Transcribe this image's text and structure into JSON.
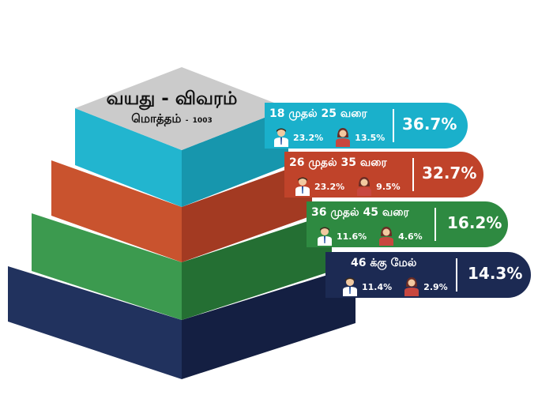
{
  "title": "வயது - விவரம்",
  "total_label": "மொத்தம்",
  "total_sep": "-",
  "total_value": "1003",
  "colors": {
    "tier1": "#1ab0cb",
    "tier2": "#c0432a",
    "tier3": "#2e8a41",
    "tier4": "#1c2a53",
    "top_face": "#c9c9c9"
  },
  "icons": {
    "male": "male-person-icon",
    "female": "female-person-icon"
  },
  "chart_data": {
    "type": "pyramid",
    "title": "வயது - விவரம்",
    "subtitle": "மொத்தம் - 1003",
    "categories": [
      "18 முதல் 25 வரை",
      "26 முதல் 35 வரை",
      "36 முதல் 45 வரை",
      "46 க்கு மேல்"
    ],
    "series": [
      {
        "name": "total",
        "values": [
          36.7,
          32.7,
          16.2,
          14.3
        ]
      },
      {
        "name": "male",
        "values": [
          23.2,
          23.2,
          11.6,
          11.4
        ]
      },
      {
        "name": "female",
        "values": [
          13.5,
          9.5,
          4.6,
          2.9
        ]
      }
    ],
    "tiers": [
      {
        "range": "18 முதல் 25 வரை",
        "male": "23.2%",
        "female": "13.5%",
        "total": "36.7%"
      },
      {
        "range": "26 முதல் 35 வரை",
        "male": "23.2%",
        "female": "9.5%",
        "total": "32.7%"
      },
      {
        "range": "36 முதல் 45 வரை",
        "male": "11.6%",
        "female": "4.6%",
        "total": "16.2%"
      },
      {
        "range": "46 க்கு மேல்",
        "male": "11.4%",
        "female": "2.9%",
        "total": "14.3%"
      }
    ]
  }
}
